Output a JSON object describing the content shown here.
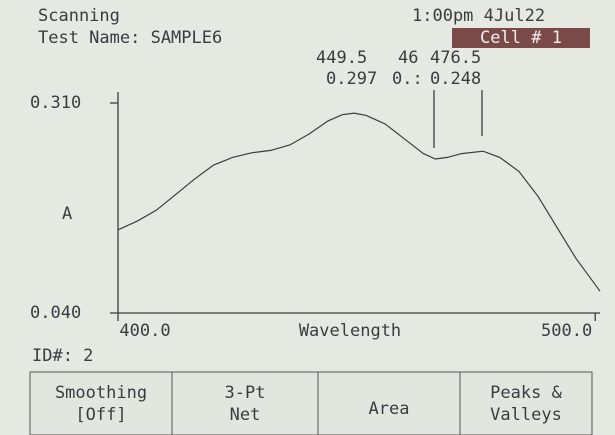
{
  "header": {
    "mode": "Scanning",
    "test_name": "Test Name: SAMPLE6",
    "datetime": "1:00pm 4Jul22",
    "cell": "Cell # 1"
  },
  "peaks": [
    {
      "wavelength": "449.5",
      "absorbance": "0.297"
    },
    {
      "wavelength": "46",
      "absorbance": "0.:"
    },
    {
      "wavelength": "476.5",
      "absorbance": "0.248"
    }
  ],
  "id": "ID#: 2",
  "buttons": [
    [
      "Smoothing",
      "[Off]"
    ],
    [
      "3-Pt",
      "Net"
    ],
    [
      "Area"
    ],
    [
      "Peaks &",
      "Valleys"
    ]
  ],
  "chart_data": {
    "type": "line",
    "xlabel": "Wavelength",
    "ylabel": "A",
    "color": "#3a3d40",
    "x": [
      400,
      404,
      408,
      412,
      416,
      420,
      424,
      428,
      432,
      436,
      440,
      444,
      447,
      449.5,
      452,
      456,
      460,
      464,
      466.5,
      469,
      472,
      476.5,
      480,
      484,
      488,
      492,
      496,
      501
    ],
    "values": [
      0.147,
      0.158,
      0.172,
      0.192,
      0.212,
      0.23,
      0.24,
      0.246,
      0.249,
      0.256,
      0.27,
      0.287,
      0.295,
      0.297,
      0.294,
      0.283,
      0.264,
      0.245,
      0.238,
      0.24,
      0.245,
      0.248,
      0.24,
      0.222,
      0.19,
      0.15,
      0.11,
      0.068
    ],
    "xlim": [
      400,
      501
    ],
    "ylim": [
      0.04,
      0.31
    ],
    "xticks": [
      {
        "value": 400,
        "label": "400.0"
      },
      {
        "value": 500,
        "label": "500.0"
      }
    ],
    "yticks": [
      {
        "value": 0.04,
        "label": "0.040"
      },
      {
        "value": 0.31,
        "label": "0.310"
      }
    ]
  }
}
